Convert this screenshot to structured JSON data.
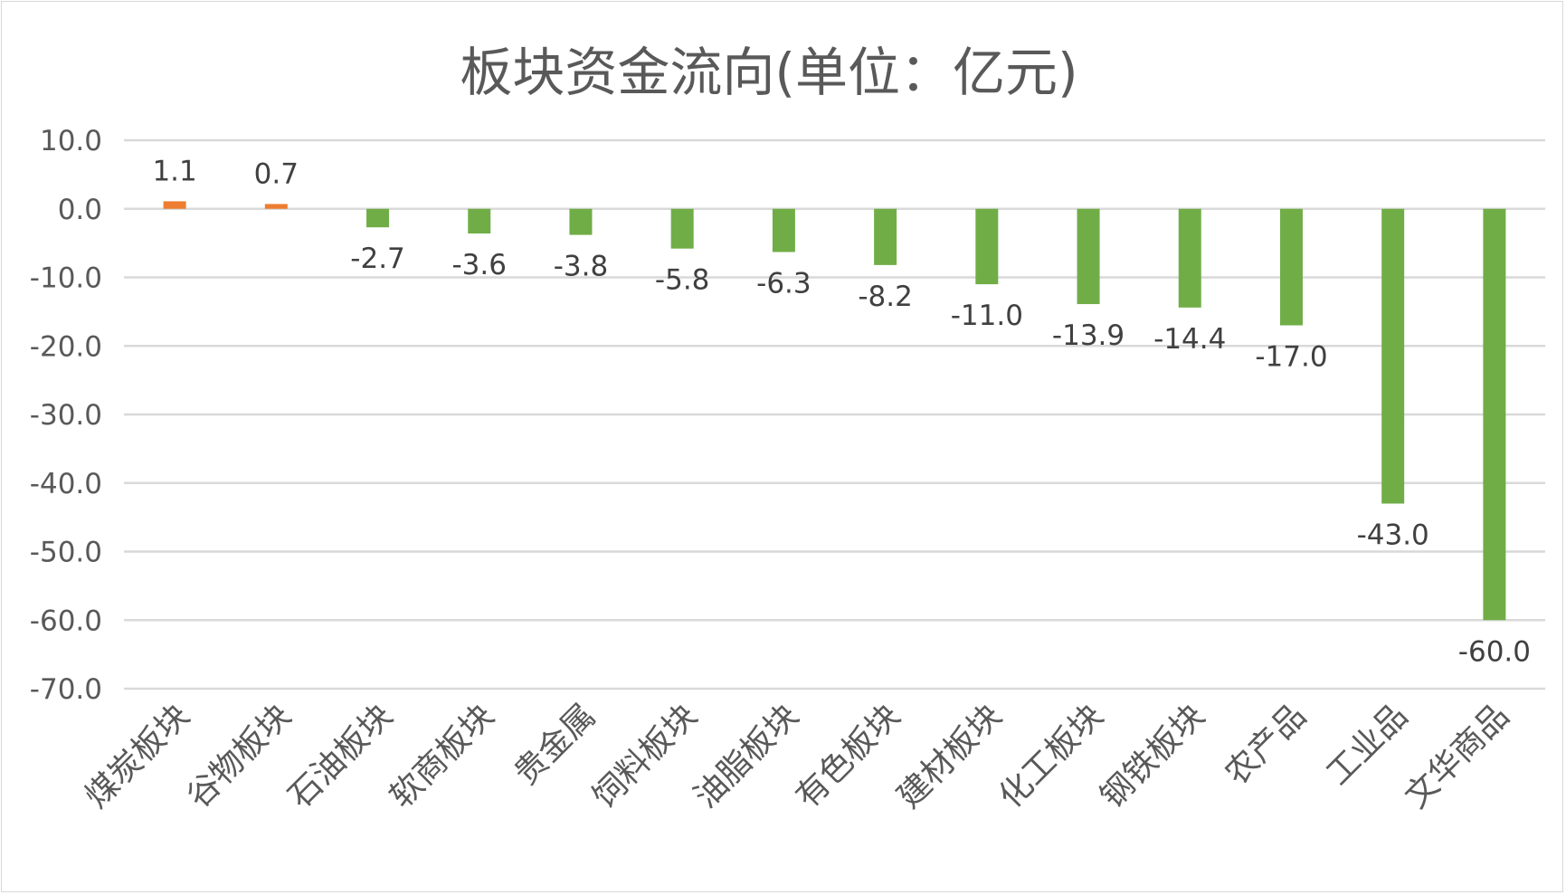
{
  "chart_data": {
    "type": "bar",
    "title": "板块资金流向(单位：亿元)",
    "xlabel": "",
    "ylabel": "",
    "ylim": [
      -70,
      10
    ],
    "ytick_step": 10,
    "ytick_decimals": 1,
    "grid": true,
    "legend": "none",
    "categories": [
      "煤炭板块",
      "谷物板块",
      "石油板块",
      "软商板块",
      "贵金属",
      "饲料板块",
      "油脂板块",
      "有色板块",
      "建材板块",
      "化工板块",
      "钢铁板块",
      "农产品",
      "工业品",
      "文华商品"
    ],
    "values": [
      1.1,
      0.7,
      -2.7,
      -3.6,
      -3.8,
      -5.8,
      -6.3,
      -8.2,
      -11.0,
      -13.9,
      -14.4,
      -17.0,
      -43.0,
      -60.0
    ],
    "data_labels": [
      "1.1",
      "0.7",
      "-2.7",
      "-3.6",
      "-3.8",
      "-5.8",
      "-6.3",
      "-8.2",
      "-11.0",
      "-13.9",
      "-14.4",
      "-17.0",
      "-43.0",
      "-60.0"
    ],
    "colors": {
      "positive": "#ed7d31",
      "negative": "#70ad47",
      "grid": "#d9d9d9",
      "axis_text": "#595959",
      "label_text": "#404040"
    }
  }
}
